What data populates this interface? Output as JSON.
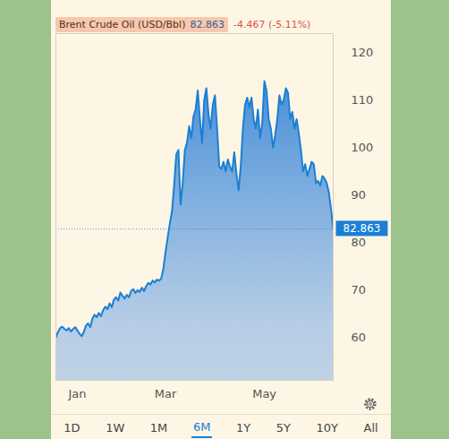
{
  "chart_data": {
    "type": "area",
    "categories": [
      null,
      null,
      null,
      null,
      null,
      null,
      null,
      null,
      null,
      null,
      "Jan",
      null,
      null,
      null,
      null,
      null,
      null,
      null,
      null,
      null,
      null,
      null,
      null,
      null,
      null,
      null,
      null,
      null,
      null,
      null,
      null,
      null,
      null,
      null,
      null,
      null,
      null,
      null,
      null,
      null,
      null,
      null,
      null,
      null,
      null,
      null,
      null,
      null,
      null,
      null,
      null,
      "Mar",
      null,
      null,
      null,
      null,
      null,
      null,
      null,
      null,
      null,
      null,
      null,
      null,
      null,
      null,
      null,
      null,
      null,
      null,
      null,
      null,
      null,
      null,
      null,
      null,
      null,
      null,
      null,
      null,
      null,
      null,
      null,
      null,
      null,
      null,
      null,
      null,
      null,
      null,
      null,
      null,
      null,
      null,
      null,
      null,
      null,
      "May",
      null,
      null,
      null,
      null,
      null,
      null,
      null,
      null,
      null,
      null,
      null,
      null,
      null,
      null,
      null,
      null,
      null,
      null,
      null,
      null,
      null,
      null,
      null,
      null,
      null,
      null,
      null,
      null,
      null,
      null,
      null,
      null
    ],
    "series": [
      {
        "name": "Brent Crude Oil (USD/Bbl)",
        "color": "#1a7fd4",
        "values": [
          60.0,
          61.2,
          62.0,
          62.3,
          61.8,
          61.5,
          62.0,
          61.3,
          61.8,
          62.2,
          61.5,
          60.8,
          60.3,
          61.2,
          62.5,
          63.0,
          62.2,
          64.0,
          64.8,
          64.3,
          65.2,
          64.5,
          65.8,
          66.5,
          66.0,
          67.2,
          66.4,
          68.0,
          68.5,
          67.8,
          69.5,
          68.8,
          68.2,
          69.0,
          68.5,
          69.8,
          70.2,
          69.4,
          70.0,
          69.6,
          70.5,
          69.8,
          70.8,
          71.5,
          71.2,
          72.0,
          71.6,
          72.2,
          72.0,
          72.4,
          74.5,
          78.0,
          81.0,
          84.0,
          86.5,
          92.0,
          98.5,
          99.5,
          88.0,
          92.5,
          99.5,
          101.0,
          104.5,
          102.0,
          106.5,
          108.0,
          112.0,
          106.0,
          101.0,
          110.0,
          112.5,
          107.0,
          104.0,
          109.0,
          111.0,
          104.0,
          96.0,
          95.5,
          97.0,
          95.0,
          97.5,
          96.0,
          95.0,
          99.0,
          94.5,
          91.0,
          96.0,
          104.0,
          109.0,
          110.5,
          108.5,
          110.5,
          106.0,
          104.0,
          108.0,
          102.0,
          105.0,
          114.0,
          112.0,
          106.0,
          104.0,
          100.0,
          102.5,
          106.0,
          111.0,
          109.0,
          110.0,
          112.5,
          111.5,
          106.0,
          107.5,
          104.0,
          106.0,
          103.0,
          99.5,
          95.0,
          96.5,
          94.0,
          95.5,
          97.0,
          96.5,
          92.5,
          93.0,
          92.0,
          94.0,
          93.5,
          92.5,
          90.5,
          87.0,
          82.863
        ]
      }
    ],
    "change_text": "-4.467 (-5.11%)",
    "ylim": [
      51,
      124
    ],
    "yticks": [
      60,
      70,
      80,
      90,
      100,
      110,
      120
    ],
    "grid": false,
    "range_buttons": [
      "1D",
      "1W",
      "1M",
      "6M",
      "1Y",
      "5Y",
      "10Y",
      "All"
    ],
    "selected_range": "6M"
  }
}
